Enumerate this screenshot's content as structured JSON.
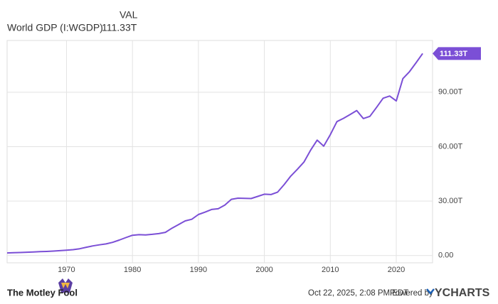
{
  "chart_data": {
    "type": "line",
    "legend_header": "VAL",
    "last_value_label": "111.33T",
    "x": [
      1961,
      1962,
      1963,
      1964,
      1965,
      1966,
      1967,
      1968,
      1969,
      1970,
      1971,
      1972,
      1973,
      1974,
      1975,
      1976,
      1977,
      1978,
      1979,
      1980,
      1981,
      1982,
      1983,
      1984,
      1985,
      1986,
      1987,
      1988,
      1989,
      1990,
      1991,
      1992,
      1993,
      1994,
      1995,
      1996,
      1997,
      1998,
      1999,
      2000,
      2001,
      2002,
      2003,
      2004,
      2005,
      2006,
      2007,
      2008,
      2009,
      2010,
      2011,
      2012,
      2013,
      2014,
      2015,
      2016,
      2017,
      2018,
      2019,
      2020,
      2021,
      2022,
      2023,
      2024
    ],
    "series": [
      {
        "name": "World GDP (I:WGDP)",
        "color": "#7b4fd6",
        "values": [
          1.45,
          1.55,
          1.67,
          1.83,
          2.0,
          2.15,
          2.27,
          2.45,
          2.7,
          2.96,
          3.25,
          3.76,
          4.59,
          5.3,
          5.9,
          6.4,
          7.26,
          8.53,
          9.9,
          11.2,
          11.5,
          11.4,
          11.7,
          12.1,
          12.8,
          15.1,
          17.1,
          19.1,
          20.0,
          22.6,
          23.9,
          25.4,
          25.8,
          27.8,
          31.0,
          31.6,
          31.5,
          31.4,
          32.6,
          33.8,
          33.6,
          34.9,
          39.1,
          43.8,
          47.5,
          51.5,
          58.0,
          63.6,
          60.3,
          66.6,
          73.8,
          75.6,
          77.7,
          79.9,
          75.5,
          76.7,
          81.6,
          86.7,
          87.9,
          85.2,
          97.5,
          101.3,
          106.2,
          111.33
        ]
      }
    ],
    "xlim": [
      1961,
      2025.5
    ],
    "xticks": [
      1970,
      1980,
      1990,
      2000,
      2010,
      2020
    ],
    "ylim": [
      -4,
      118.5
    ],
    "yticks": [
      {
        "value": 0,
        "label": "0.00"
      },
      {
        "value": 30,
        "label": "30.00T"
      },
      {
        "value": 60,
        "label": "60.00T"
      },
      {
        "value": 90,
        "label": "90.00T"
      }
    ],
    "grid": true
  },
  "footer": {
    "brand": "The Motley Fool",
    "timestamp": "Oct 22, 2025, 2:08 PM EDT",
    "powered_by": "Powered by",
    "logo": "YCHARTS"
  }
}
